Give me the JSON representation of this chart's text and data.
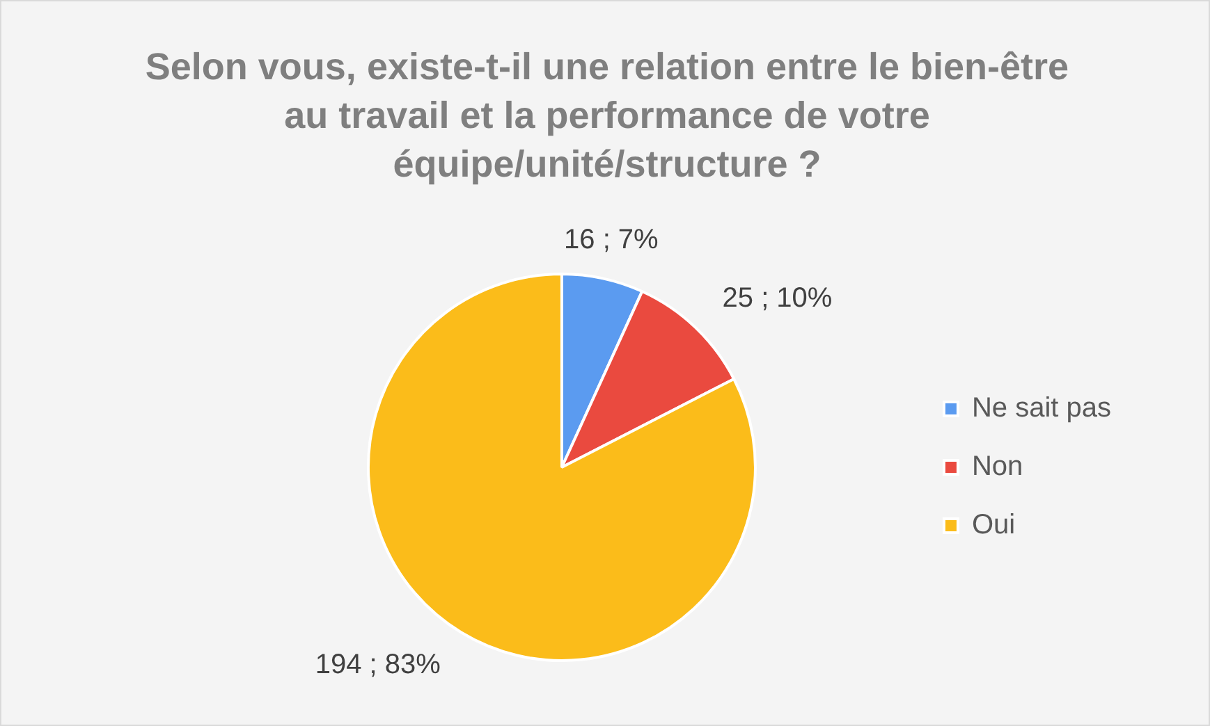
{
  "chart_data": {
    "type": "pie",
    "title": "Selon vous, existe-t-il une relation entre le bien-être au travail et la performance de votre équipe/unité/structure ?",
    "categories": [
      "Ne sait pas",
      "Non",
      "Oui"
    ],
    "values": [
      16,
      25,
      194
    ],
    "colors": [
      "#5b9bf0",
      "#ea4a3f",
      "#fbbc1a"
    ],
    "value_labels": [
      "16 ; 7%",
      "25 ; 10%",
      "194 ; 83%"
    ],
    "legend": "right"
  }
}
